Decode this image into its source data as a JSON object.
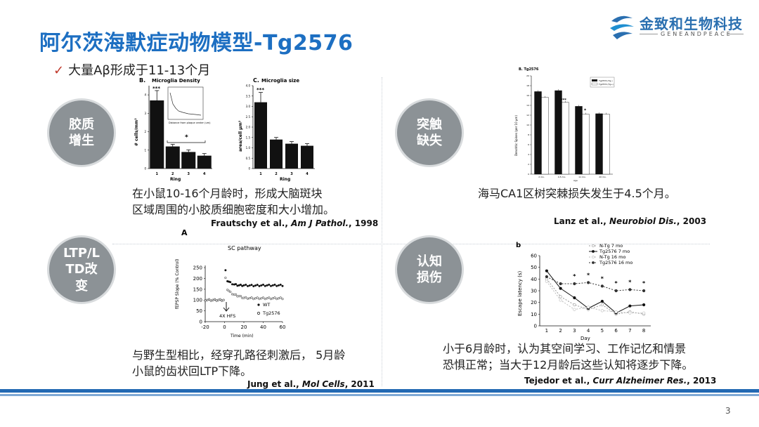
{
  "title": "阿尔茨海默症动物模型-Tg2576",
  "logo": {
    "cn": "金致和生物科技",
    "en": "GENEANDPEACE"
  },
  "bullet": {
    "check": "✓",
    "text": "大量Aβ形成于11-13个月"
  },
  "circles": {
    "glia": "胶质\n增生",
    "synapse": "突触\n缺失",
    "ltp": "LTP/L\nTD改\n变",
    "cognition": "认知\n损伤"
  },
  "q1": {
    "desc1": "在小鼠10-16个月龄时，形成大脑斑块",
    "desc2": "区域周围的小胶质细胞密度和大小增加。",
    "ref_authors": "Frautschy et al., ",
    "ref_journal": "Am J Pathol.",
    "ref_year": ", 1998",
    "figB_label": "B.",
    "figB_title": "Microglia   Density",
    "figB_ylabel": "# cells/mm²",
    "figB_xlabel": "Ring",
    "figB_stars": "***",
    "figB_sig": "*",
    "figB_inset_text": "Distance from plaque center (um)",
    "figC_label": "C.",
    "figC_title": "Microglia    size",
    "figC_ylabel": "area/cell  µm²",
    "figC_xlabel": "Ring",
    "figC_stars": "***",
    "xticks": [
      "1",
      "2",
      "3",
      "4"
    ]
  },
  "q2": {
    "desc": "海马CA1区树突棘损失发生于4.5个月。",
    "ref_authors": "Lanz et al., ",
    "ref_journal": "Neurobiol Dis.",
    "ref_year": ", 2003",
    "fig_label": "B. Tg2576",
    "fig_ylabel": "Dendritic Spines (per 10 µm)",
    "fig_xlabel": "Age",
    "legend": [
      "Tg2576 (Tg-)",
      "Tg2576 (Tg+)"
    ],
    "xticks": [
      "2 mo.",
      "4.5 mo.",
      "11 mo.",
      "20 mo."
    ],
    "stars": "***",
    "star": "*"
  },
  "q3": {
    "desc1": "与野生型相比，经穿孔路径刺激后，  5月龄",
    "desc2": "小鼠的齿状回LTP下降。",
    "ref_authors": "Jung et al., ",
    "ref_journal": "Mol Cells",
    "ref_year": ", 2011",
    "fig_label": "A",
    "fig_title": "SC pathway",
    "fig_ylabel": "fEPSP Slope (% Control)",
    "fig_xlabel": "Time (min)",
    "hfs": "4X HFS",
    "legend": [
      "WT",
      "Tg2576"
    ]
  },
  "q4": {
    "desc1": "小于6月龄时，认为其空间学习、工作记忆和情景",
    "desc2": "恐惧正常；当大于12月龄后这些认知将逐步下降。",
    "ref_authors": "Tejedor et al., ",
    "ref_journal": "Curr Alzheimer Res.",
    "ref_year": ", 2013",
    "fig_label": "b",
    "fig_ylabel": "Escape latency (s)",
    "fig_xlabel": "Day",
    "legend": [
      "N-Tg 7 mo",
      "Tg2576 7 mo",
      "N-Tg 16 mo",
      "Tg2576 16 mo"
    ]
  },
  "chart_data": [
    {
      "type": "bar",
      "title": "Microglia   Density",
      "xlabel": "Ring",
      "ylabel": "# cells/mm²",
      "categories": [
        "1",
        "2",
        "3",
        "4"
      ],
      "values": [
        3.7,
        1.2,
        0.9,
        0.7
      ],
      "yticks": [
        "0",
        "1",
        "2",
        "3",
        "4"
      ],
      "ylim": [
        0,
        4.5
      ]
    },
    {
      "type": "bar",
      "title": "Microglia    size",
      "xlabel": "Ring",
      "ylabel": "area/cell  µm²",
      "categories": [
        "1",
        "2",
        "3",
        "4"
      ],
      "values": [
        3.2,
        1.4,
        1.2,
        1.1
      ],
      "yticks": [
        "0",
        "0.5",
        "1.0",
        "1.5",
        "2.0",
        "2.5",
        "3.0",
        "3.5",
        "4.0"
      ],
      "ylim": [
        0,
        4.0
      ]
    },
    {
      "type": "bar",
      "title": "B. Tg2576",
      "xlabel": "Age",
      "ylabel": "Dendritic Spines (per 10 µm)",
      "categories": [
        "2 mo.",
        "4.5 mo.",
        "11 mo.",
        "20 mo."
      ],
      "series": [
        {
          "name": "Tg2576 (Tg-)",
          "values": [
            16.8,
            17.0,
            13.8,
            12.3
          ]
        },
        {
          "name": "Tg2576 (Tg+)",
          "values": [
            15.6,
            14.6,
            12.2,
            12.2
          ]
        }
      ],
      "ylim": [
        0,
        20
      ]
    },
    {
      "type": "line",
      "title": "SC pathway",
      "xlabel": "Time (min)",
      "ylabel": "fEPSP Slope (% Control)",
      "xticks": [
        "-20",
        "0",
        "20",
        "40",
        "60"
      ],
      "yticks": [
        "0",
        "50",
        "100",
        "150",
        "200",
        "250"
      ],
      "xlim": [
        -20,
        60
      ],
      "ylim": [
        0,
        260
      ],
      "series": [
        {
          "name": "WT",
          "x": [
            -20,
            -10,
            -1,
            1,
            3,
            6,
            10,
            15,
            20,
            30,
            40,
            50,
            60
          ],
          "y": [
            100,
            100,
            100,
            235,
            190,
            180,
            172,
            168,
            168,
            167,
            168,
            168,
            168
          ]
        },
        {
          "name": "Tg2576",
          "x": [
            -20,
            -10,
            -1,
            1,
            3,
            6,
            10,
            15,
            20,
            30,
            40,
            50,
            60
          ],
          "y": [
            100,
            100,
            100,
            200,
            150,
            135,
            125,
            118,
            110,
            108,
            108,
            108,
            108
          ]
        }
      ]
    },
    {
      "type": "line",
      "xlabel": "Day",
      "ylabel": "Escape latency (s)",
      "categories": [
        "1",
        "2",
        "3",
        "4",
        "5",
        "6",
        "7",
        "8"
      ],
      "yticks": [
        "0",
        "10",
        "20",
        "30",
        "40",
        "50",
        "60"
      ],
      "ylim": [
        0,
        60
      ],
      "series": [
        {
          "name": "N-Tg 7 mo",
          "values": [
            40,
            25,
            18,
            14,
            18,
            10,
            12,
            10
          ]
        },
        {
          "name": "Tg2576 7 mo",
          "values": [
            47,
            32,
            24,
            15,
            21,
            11,
            17,
            18
          ]
        },
        {
          "name": "N-Tg 16 mo",
          "values": [
            38,
            22,
            14,
            16,
            13,
            12,
            11,
            11
          ]
        },
        {
          "name": "Tg2576 16 mo",
          "values": [
            42,
            36,
            36,
            37,
            34,
            30,
            31,
            30
          ]
        }
      ]
    }
  ],
  "page_number": "3"
}
